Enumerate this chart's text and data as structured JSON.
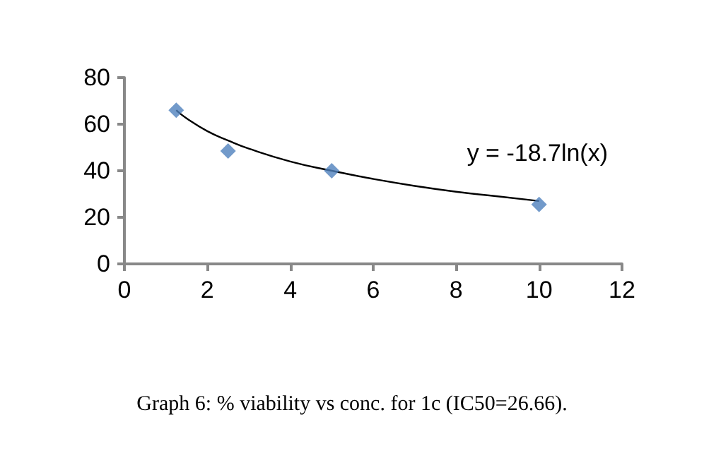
{
  "chart_data": {
    "type": "scatter",
    "title": "Graph 6: % viability vs conc. for 1c (IC50=26.66).",
    "series": [
      {
        "color": "#4f81bd",
        "marker": "diamond",
        "x": [
          1.25,
          2.5,
          5,
          10
        ],
        "values": [
          66,
          48.5,
          40,
          25.5
        ]
      },
      {
        "type": "line",
        "color": "#000000",
        "marker": "none",
        "x": [
          1.25,
          1.5,
          2,
          2.5,
          3,
          4,
          5,
          6,
          7,
          8,
          9,
          10
        ],
        "values": [
          66,
          62.5,
          57,
          53,
          49.5,
          44,
          40,
          36.5,
          33.5,
          31,
          29,
          27
        ]
      }
    ],
    "annotations": [
      "y = -18.7ln(x)"
    ],
    "xlim": [
      0,
      12
    ],
    "xticks": [
      0,
      2,
      4,
      6,
      8,
      10,
      12
    ],
    "ylim": [
      0,
      80
    ],
    "yticks": [
      0,
      20,
      40,
      60,
      80
    ],
    "grid": false
  }
}
